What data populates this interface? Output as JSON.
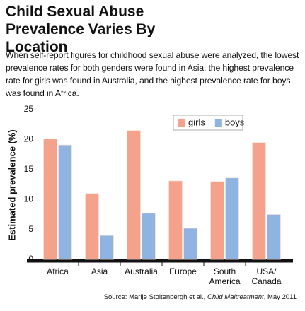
{
  "chart_data": {
    "type": "bar",
    "title": "Child Sexual Abuse Prevalence Varies By Location",
    "subtitle": "When self-report figures for childhood sexual abuse were analyzed, the lowest prevalence rates for both genders were found in Asia, the highest prevalence rate for girls was found in Australia, and the highest prevalence rate for boys was found in Africa.",
    "y_label": "Estimated prevalence (%)",
    "categories": [
      "Africa",
      "Asia",
      "Australia",
      "Europe",
      "South America",
      "USA/ Canada"
    ],
    "series": [
      {
        "name": "girls",
        "color": "#f4a28c",
        "values": [
          20.1,
          11,
          21.5,
          13.1,
          13,
          19.5
        ]
      },
      {
        "name": "boys",
        "color": "#8fb4e2",
        "values": [
          19.1,
          4,
          7.7,
          5.2,
          13.6,
          7.5
        ]
      }
    ],
    "ylim": [
      0,
      25
    ],
    "yticks": [
      0,
      5,
      10,
      15,
      20,
      25
    ],
    "grid": false,
    "legend": "top-right",
    "source_prefix": "Source: Marije Stoltenbergh et al.,",
    "source_journal": "Child Maltreatment",
    "source_suffix": ", May 2011"
  }
}
